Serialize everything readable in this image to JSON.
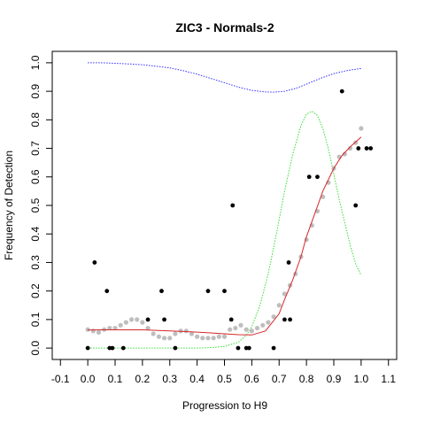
{
  "chart_data": {
    "type": "scatter",
    "title": "ZIC3 - Normals-2",
    "xlabel": "Progression to H9",
    "ylabel": "Frequency of Detection",
    "xlim": [
      -0.13,
      1.13
    ],
    "ylim": [
      -0.04,
      1.04
    ],
    "x_ticks": [
      "-0.1",
      "0.0",
      "0.1",
      "0.2",
      "0.3",
      "0.4",
      "0.5",
      "0.6",
      "0.7",
      "0.8",
      "0.9",
      "1.0",
      "1.1"
    ],
    "y_ticks": [
      "0.0",
      "0.1",
      "0.2",
      "0.3",
      "0.4",
      "0.5",
      "0.6",
      "0.7",
      "0.8",
      "0.9",
      "1.0"
    ],
    "grid": false,
    "colors": {
      "observed": "#000000",
      "smoothed_points": "#bebebe",
      "fit_line": "#d62728",
      "upper_curve": "#3333ff",
      "density_curve": "#33dd33"
    },
    "series": [
      {
        "type": "scatter",
        "values": [
          {
            "x": 0.0,
            "y": 0.0
          },
          {
            "x": 0.025,
            "y": 0.3
          },
          {
            "x": 0.07,
            "y": 0.2
          },
          {
            "x": 0.08,
            "y": 0.0
          },
          {
            "x": 0.09,
            "y": 0.0
          },
          {
            "x": 0.13,
            "y": 0.0
          },
          {
            "x": 0.22,
            "y": 0.1
          },
          {
            "x": 0.27,
            "y": 0.2
          },
          {
            "x": 0.28,
            "y": 0.1
          },
          {
            "x": 0.32,
            "y": 0.0
          },
          {
            "x": 0.44,
            "y": 0.2
          },
          {
            "x": 0.5,
            "y": 0.2
          },
          {
            "x": 0.525,
            "y": 0.1
          },
          {
            "x": 0.53,
            "y": 0.5
          },
          {
            "x": 0.55,
            "y": 0.0
          },
          {
            "x": 0.58,
            "y": 0.0
          },
          {
            "x": 0.59,
            "y": 0.0
          },
          {
            "x": 0.68,
            "y": 0.0
          },
          {
            "x": 0.72,
            "y": 0.1
          },
          {
            "x": 0.735,
            "y": 0.3
          },
          {
            "x": 0.74,
            "y": 0.1
          },
          {
            "x": 0.81,
            "y": 0.6
          },
          {
            "x": 0.84,
            "y": 0.6
          },
          {
            "x": 0.93,
            "y": 0.9
          },
          {
            "x": 0.98,
            "y": 0.5
          },
          {
            "x": 0.99,
            "y": 0.7
          },
          {
            "x": 1.02,
            "y": 0.7
          },
          {
            "x": 1.035,
            "y": 0.7
          }
        ]
      },
      {
        "type": "scatter",
        "values": [
          {
            "x": 0.0,
            "y": 0.065
          },
          {
            "x": 0.02,
            "y": 0.06
          },
          {
            "x": 0.04,
            "y": 0.055
          },
          {
            "x": 0.06,
            "y": 0.065
          },
          {
            "x": 0.08,
            "y": 0.07
          },
          {
            "x": 0.1,
            "y": 0.07
          },
          {
            "x": 0.12,
            "y": 0.08
          },
          {
            "x": 0.14,
            "y": 0.09
          },
          {
            "x": 0.16,
            "y": 0.1
          },
          {
            "x": 0.18,
            "y": 0.1
          },
          {
            "x": 0.2,
            "y": 0.09
          },
          {
            "x": 0.22,
            "y": 0.07
          },
          {
            "x": 0.24,
            "y": 0.05
          },
          {
            "x": 0.26,
            "y": 0.04
          },
          {
            "x": 0.28,
            "y": 0.035
          },
          {
            "x": 0.3,
            "y": 0.035
          },
          {
            "x": 0.32,
            "y": 0.05
          },
          {
            "x": 0.34,
            "y": 0.06
          },
          {
            "x": 0.36,
            "y": 0.06
          },
          {
            "x": 0.38,
            "y": 0.05
          },
          {
            "x": 0.4,
            "y": 0.04
          },
          {
            "x": 0.42,
            "y": 0.035
          },
          {
            "x": 0.44,
            "y": 0.035
          },
          {
            "x": 0.46,
            "y": 0.035
          },
          {
            "x": 0.48,
            "y": 0.04
          },
          {
            "x": 0.5,
            "y": 0.04
          },
          {
            "x": 0.52,
            "y": 0.065
          },
          {
            "x": 0.54,
            "y": 0.07
          },
          {
            "x": 0.56,
            "y": 0.08
          },
          {
            "x": 0.58,
            "y": 0.065
          },
          {
            "x": 0.6,
            "y": 0.06
          },
          {
            "x": 0.62,
            "y": 0.07
          },
          {
            "x": 0.64,
            "y": 0.08
          },
          {
            "x": 0.66,
            "y": 0.09
          },
          {
            "x": 0.68,
            "y": 0.11
          },
          {
            "x": 0.7,
            "y": 0.15
          },
          {
            "x": 0.72,
            "y": 0.19
          },
          {
            "x": 0.74,
            "y": 0.22
          },
          {
            "x": 0.76,
            "y": 0.26
          },
          {
            "x": 0.78,
            "y": 0.32
          },
          {
            "x": 0.8,
            "y": 0.38
          },
          {
            "x": 0.82,
            "y": 0.43
          },
          {
            "x": 0.84,
            "y": 0.48
          },
          {
            "x": 0.86,
            "y": 0.53
          },
          {
            "x": 0.88,
            "y": 0.58
          },
          {
            "x": 0.9,
            "y": 0.63
          },
          {
            "x": 0.92,
            "y": 0.67
          },
          {
            "x": 0.94,
            "y": 0.68
          },
          {
            "x": 0.96,
            "y": 0.7
          },
          {
            "x": 0.98,
            "y": 0.72
          },
          {
            "x": 1.0,
            "y": 0.77
          }
        ]
      },
      {
        "type": "line",
        "values": [
          {
            "x": 0.0,
            "y": 0.063
          },
          {
            "x": 0.05,
            "y": 0.064
          },
          {
            "x": 0.1,
            "y": 0.064
          },
          {
            "x": 0.15,
            "y": 0.064
          },
          {
            "x": 0.2,
            "y": 0.064
          },
          {
            "x": 0.25,
            "y": 0.062
          },
          {
            "x": 0.3,
            "y": 0.06
          },
          {
            "x": 0.35,
            "y": 0.058
          },
          {
            "x": 0.4,
            "y": 0.056
          },
          {
            "x": 0.45,
            "y": 0.053
          },
          {
            "x": 0.5,
            "y": 0.05
          },
          {
            "x": 0.55,
            "y": 0.047
          },
          {
            "x": 0.6,
            "y": 0.046
          },
          {
            "x": 0.65,
            "y": 0.06
          },
          {
            "x": 0.7,
            "y": 0.12
          },
          {
            "x": 0.72,
            "y": 0.17
          },
          {
            "x": 0.75,
            "y": 0.24
          },
          {
            "x": 0.78,
            "y": 0.32
          },
          {
            "x": 0.8,
            "y": 0.39
          },
          {
            "x": 0.83,
            "y": 0.47
          },
          {
            "x": 0.86,
            "y": 0.55
          },
          {
            "x": 0.9,
            "y": 0.63
          },
          {
            "x": 0.93,
            "y": 0.675
          },
          {
            "x": 0.96,
            "y": 0.705
          },
          {
            "x": 1.0,
            "y": 0.74
          }
        ]
      },
      {
        "type": "line",
        "values": [
          {
            "x": 0.0,
            "y": 1.0
          },
          {
            "x": 0.05,
            "y": 1.0
          },
          {
            "x": 0.1,
            "y": 0.998
          },
          {
            "x": 0.15,
            "y": 0.996
          },
          {
            "x": 0.2,
            "y": 0.993
          },
          {
            "x": 0.25,
            "y": 0.988
          },
          {
            "x": 0.3,
            "y": 0.982
          },
          {
            "x": 0.35,
            "y": 0.972
          },
          {
            "x": 0.4,
            "y": 0.96
          },
          {
            "x": 0.45,
            "y": 0.945
          },
          {
            "x": 0.5,
            "y": 0.93
          },
          {
            "x": 0.55,
            "y": 0.915
          },
          {
            "x": 0.6,
            "y": 0.903
          },
          {
            "x": 0.65,
            "y": 0.898
          },
          {
            "x": 0.68,
            "y": 0.897
          },
          {
            "x": 0.72,
            "y": 0.9
          },
          {
            "x": 0.76,
            "y": 0.91
          },
          {
            "x": 0.8,
            "y": 0.925
          },
          {
            "x": 0.85,
            "y": 0.945
          },
          {
            "x": 0.9,
            "y": 0.962
          },
          {
            "x": 0.95,
            "y": 0.973
          },
          {
            "x": 1.0,
            "y": 0.98
          }
        ]
      },
      {
        "type": "line",
        "values": [
          {
            "x": 0.0,
            "y": 0.0
          },
          {
            "x": 0.1,
            "y": 0.0
          },
          {
            "x": 0.2,
            "y": 0.0
          },
          {
            "x": 0.3,
            "y": 0.0
          },
          {
            "x": 0.4,
            "y": 0.0
          },
          {
            "x": 0.45,
            "y": 0.002
          },
          {
            "x": 0.5,
            "y": 0.006
          },
          {
            "x": 0.55,
            "y": 0.02
          },
          {
            "x": 0.58,
            "y": 0.045
          },
          {
            "x": 0.6,
            "y": 0.075
          },
          {
            "x": 0.63,
            "y": 0.15
          },
          {
            "x": 0.66,
            "y": 0.26
          },
          {
            "x": 0.69,
            "y": 0.4
          },
          {
            "x": 0.72,
            "y": 0.55
          },
          {
            "x": 0.75,
            "y": 0.68
          },
          {
            "x": 0.78,
            "y": 0.78
          },
          {
            "x": 0.8,
            "y": 0.82
          },
          {
            "x": 0.82,
            "y": 0.83
          },
          {
            "x": 0.84,
            "y": 0.815
          },
          {
            "x": 0.86,
            "y": 0.77
          },
          {
            "x": 0.88,
            "y": 0.7
          },
          {
            "x": 0.9,
            "y": 0.61
          },
          {
            "x": 0.92,
            "y": 0.52
          },
          {
            "x": 0.94,
            "y": 0.44
          },
          {
            "x": 0.96,
            "y": 0.36
          },
          {
            "x": 0.98,
            "y": 0.295
          },
          {
            "x": 1.0,
            "y": 0.255
          }
        ]
      }
    ]
  }
}
